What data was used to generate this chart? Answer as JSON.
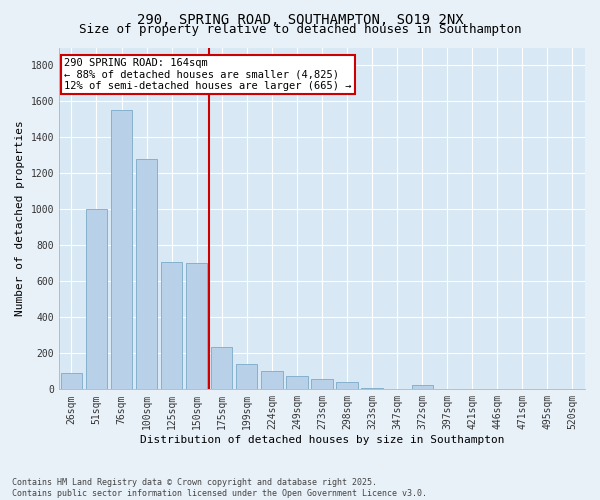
{
  "title": "290, SPRING ROAD, SOUTHAMPTON, SO19 2NX",
  "subtitle": "Size of property relative to detached houses in Southampton",
  "xlabel": "Distribution of detached houses by size in Southampton",
  "ylabel": "Number of detached properties",
  "categories": [
    "26sqm",
    "51sqm",
    "76sqm",
    "100sqm",
    "125sqm",
    "150sqm",
    "175sqm",
    "199sqm",
    "224sqm",
    "249sqm",
    "273sqm",
    "298sqm",
    "323sqm",
    "347sqm",
    "372sqm",
    "397sqm",
    "421sqm",
    "446sqm",
    "471sqm",
    "495sqm",
    "520sqm"
  ],
  "values": [
    90,
    1000,
    1550,
    1280,
    710,
    700,
    235,
    140,
    100,
    75,
    55,
    40,
    10,
    0,
    25,
    0,
    0,
    0,
    0,
    0,
    0
  ],
  "bar_color": "#b8d0e8",
  "bar_edge_color": "#7aaac8",
  "vline_color": "#cc0000",
  "annotation_text": "290 SPRING ROAD: 164sqm\n← 88% of detached houses are smaller (4,825)\n12% of semi-detached houses are larger (665) →",
  "annotation_box_color": "#cc0000",
  "background_color": "#e8f0f8",
  "plot_background_color": "#d8e8f4",
  "grid_color": "#ffffff",
  "ylim": [
    0,
    1900
  ],
  "yticks": [
    0,
    200,
    400,
    600,
    800,
    1000,
    1200,
    1400,
    1600,
    1800
  ],
  "footer_text": "Contains HM Land Registry data © Crown copyright and database right 2025.\nContains public sector information licensed under the Open Government Licence v3.0.",
  "title_fontsize": 10,
  "subtitle_fontsize": 9,
  "axis_label_fontsize": 8,
  "tick_fontsize": 7,
  "annotation_fontsize": 7.5
}
